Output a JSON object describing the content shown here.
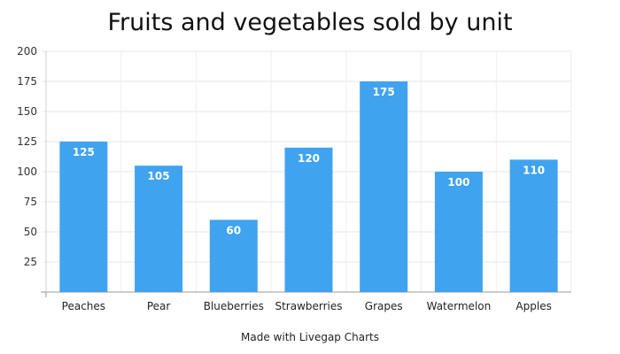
{
  "chart_data": {
    "type": "bar",
    "title": "Fruits and vegetables sold by unit",
    "categories": [
      "Peaches",
      "Pear",
      "Blueberries",
      "Strawberries",
      "Grapes",
      "Watermelon",
      "Apples"
    ],
    "values": [
      125,
      105,
      60,
      120,
      175,
      100,
      110
    ],
    "xlabel": "",
    "ylabel": "",
    "ylim": [
      0,
      200
    ],
    "yticks": [
      "25",
      "50",
      "75",
      "100",
      "125",
      "150",
      "175",
      "200"
    ],
    "data_labels_shown": true,
    "grid": true,
    "legend": "none",
    "bar_color": "#3fa3ef",
    "label_color": "#ffffff"
  },
  "footer": {
    "credit": "Made with Livegap Charts"
  }
}
